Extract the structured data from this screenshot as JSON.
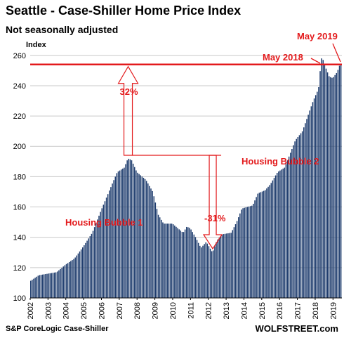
{
  "chart_data": {
    "type": "bar",
    "title": "Seattle - Case-Shiller Home Price Index",
    "subtitle": "Not seasonally adjusted",
    "ylabel": "Index",
    "ylim": [
      100,
      265
    ],
    "yticks": [
      100,
      120,
      140,
      160,
      180,
      200,
      220,
      240,
      260
    ],
    "xticks": [
      "2002",
      "2003",
      "2004",
      "2005",
      "2006",
      "2007",
      "2008",
      "2009",
      "2010",
      "2011",
      "2012",
      "2013",
      "2014",
      "2015",
      "2016",
      "2017",
      "2018",
      "2019"
    ],
    "bar_color": "#1f3d6e",
    "annotation_color": "#e31a1c",
    "x_start": 2002.0,
    "x_end": 2019.5,
    "anchors": [
      [
        2002.0,
        111
      ],
      [
        2002.5,
        115
      ],
      [
        2003.0,
        116
      ],
      [
        2003.5,
        117
      ],
      [
        2004.0,
        122
      ],
      [
        2004.5,
        126
      ],
      [
        2005.0,
        134
      ],
      [
        2005.5,
        143
      ],
      [
        2006.0,
        158
      ],
      [
        2006.5,
        172
      ],
      [
        2006.9,
        183
      ],
      [
        2007.3,
        186
      ],
      [
        2007.5,
        192
      ],
      [
        2007.7,
        191
      ],
      [
        2008.0,
        183
      ],
      [
        2008.5,
        178
      ],
      [
        2008.9,
        170
      ],
      [
        2009.2,
        155
      ],
      [
        2009.5,
        149
      ],
      [
        2010.0,
        149
      ],
      [
        2010.3,
        146
      ],
      [
        2010.6,
        143
      ],
      [
        2010.8,
        147
      ],
      [
        2011.0,
        146
      ],
      [
        2011.3,
        140
      ],
      [
        2011.6,
        133
      ],
      [
        2011.9,
        137
      ],
      [
        2012.1,
        133
      ],
      [
        2012.25,
        130
      ],
      [
        2012.5,
        138
      ],
      [
        2012.8,
        142
      ],
      [
        2013.3,
        143
      ],
      [
        2013.6,
        150
      ],
      [
        2013.9,
        159
      ],
      [
        2014.2,
        160
      ],
      [
        2014.5,
        161
      ],
      [
        2014.8,
        169
      ],
      [
        2015.2,
        171
      ],
      [
        2015.5,
        175
      ],
      [
        2015.9,
        183
      ],
      [
        2016.3,
        186
      ],
      [
        2016.6,
        195
      ],
      [
        2016.9,
        204
      ],
      [
        2017.3,
        210
      ],
      [
        2017.6,
        220
      ],
      [
        2017.9,
        230
      ],
      [
        2018.2,
        238
      ],
      [
        2018.35,
        257
      ],
      [
        2018.4,
        259
      ],
      [
        2018.6,
        252
      ],
      [
        2018.8,
        246
      ],
      [
        2019.0,
        245
      ],
      [
        2019.25,
        249
      ],
      [
        2019.4,
        254
      ]
    ],
    "annotations": {
      "may2019": "May 2019",
      "may2018": "May 2018",
      "rise": "32%",
      "fall": "-31%",
      "bubble1": "Housing Bubble 1",
      "bubble2": "Housing Bubble 2"
    }
  },
  "source": "S&P CoreLogic Case-Shiller",
  "brand": "WOLFSTREET.com"
}
